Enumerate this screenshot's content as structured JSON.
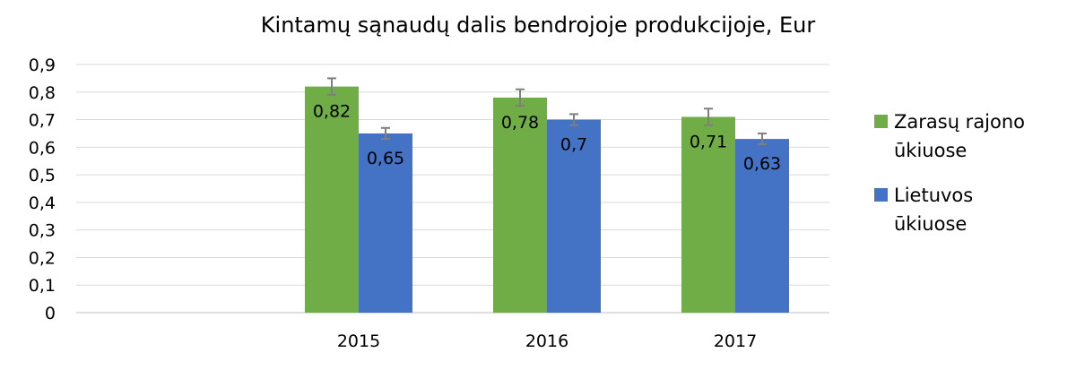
{
  "chart_data": {
    "type": "bar",
    "title": "Kintamų sąnaudų dalis bendrojoje produkcijoje, Eur",
    "categories": [
      "",
      "2015",
      "2016",
      "2017"
    ],
    "series": [
      {
        "name": "Zarasų rajono ūkiuose",
        "color": "#70AD47",
        "values": [
          null,
          0.82,
          0.78,
          0.71
        ],
        "errors": [
          null,
          0.03,
          0.03,
          0.03
        ]
      },
      {
        "name": "Lietuvos ūkiuose",
        "color": "#4472C4",
        "values": [
          null,
          0.65,
          0.7,
          0.63
        ],
        "errors": [
          null,
          0.02,
          0.02,
          0.02
        ]
      }
    ],
    "data_labels": [
      [
        "",
        "0,82",
        "0,78",
        "0,71"
      ],
      [
        "",
        "0,65",
        "0,7",
        "0,63"
      ]
    ],
    "y_ticks": [
      "0",
      "0,1",
      "0,2",
      "0,3",
      "0,4",
      "0,5",
      "0,6",
      "0,7",
      "0,8",
      "0,9"
    ],
    "ylim": [
      0,
      0.9
    ],
    "grid": true,
    "legend": "right",
    "gridline_color": "#D9D9D9",
    "errorbar_color": "#7F7F7F"
  }
}
